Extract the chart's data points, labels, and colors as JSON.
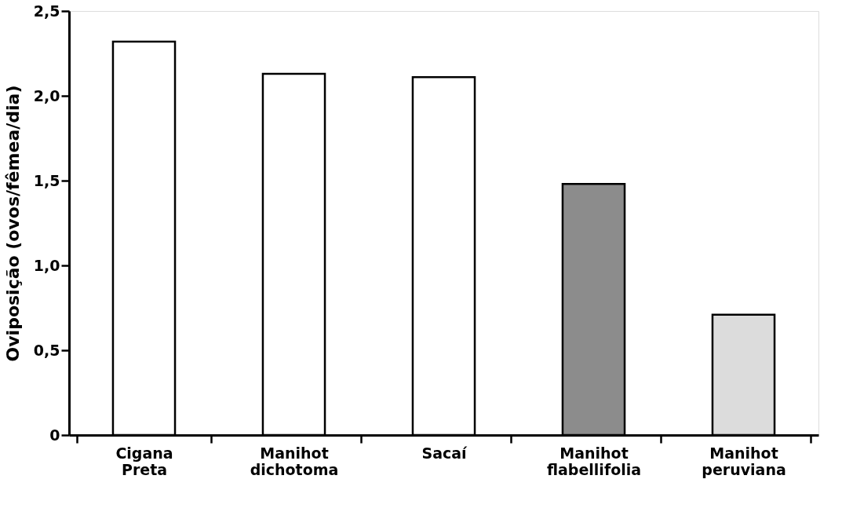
{
  "chart_data": {
    "type": "bar",
    "ylabel": "Oviposição (ovos/fêmea/dia)",
    "categories": [
      "Cigana Preta",
      "Manihot dichotoma",
      "Sacaí",
      "Manihot flabellifolia",
      "Manihot peruviana"
    ],
    "values": [
      2.32,
      2.13,
      2.11,
      1.48,
      0.71
    ],
    "colors": [
      "#ffffff",
      "#ffffff",
      "#ffffff",
      "#8c8c8c",
      "#dcdcdc"
    ],
    "ylim": [
      0,
      2.5
    ],
    "yticks": [
      0,
      {
        "value": 0.5,
        "label": "0,5"
      },
      {
        "value": 1.0,
        "label": "1,0"
      },
      {
        "value": 1.5,
        "label": "1,5"
      },
      {
        "value": 2.0,
        "label": "2,0"
      },
      {
        "value": 2.5,
        "label": "2,5"
      }
    ],
    "grid": false
  }
}
